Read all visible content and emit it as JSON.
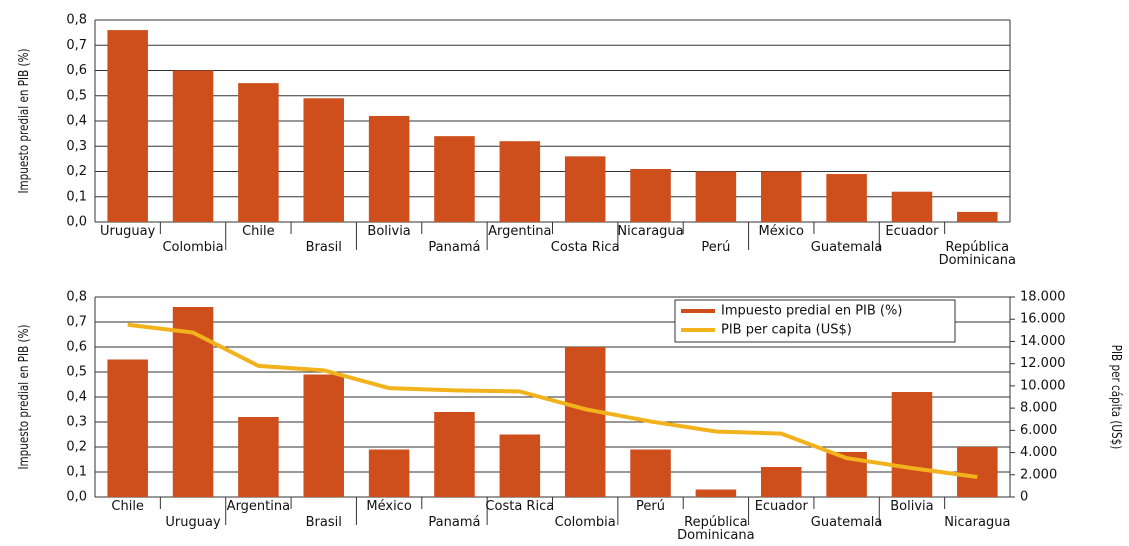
{
  "chart_data": [
    {
      "type": "bar",
      "y_label": "Impuesto predial en PIB (%)",
      "categories": [
        "Uruguay",
        "Colombia",
        "Chile",
        "Brasil",
        "Bolivia",
        "Panamá",
        "Argentina",
        "Costa Rica",
        "Nicaragua",
        "Perú",
        "México",
        "Guatemala",
        "Ecuador",
        "República Dominicana"
      ],
      "values": [
        0.76,
        0.6,
        0.55,
        0.49,
        0.42,
        0.34,
        0.32,
        0.26,
        0.21,
        0.2,
        0.2,
        0.19,
        0.12,
        0.04
      ],
      "color": "#cf4f1c",
      "ylim": [
        0,
        0.8
      ],
      "yticks": [
        {
          "value": 0,
          "label": "0,0"
        },
        {
          "value": 0.1,
          "label": "0,1"
        },
        {
          "value": 0.2,
          "label": "0,2"
        },
        {
          "value": 0.3,
          "label": "0,3"
        },
        {
          "value": 0.4,
          "label": "0,4"
        },
        {
          "value": 0.5,
          "label": "0,5"
        },
        {
          "value": 0.6,
          "label": "0,6"
        },
        {
          "value": 0.7,
          "label": "0,7"
        },
        {
          "value": 0.8,
          "label": "0,8"
        }
      ],
      "grid": true
    },
    {
      "type": "bar_line",
      "y_label": "Impuesto predial en PIB (%)",
      "y2_label": "PIB per cápita (US$)",
      "categories": [
        "Chile",
        "Uruguay",
        "Argentina",
        "Brasil",
        "México",
        "Panamá",
        "Costa Rica",
        "Colombia",
        "Perú",
        "República Dominicana",
        "Ecuador",
        "Guatemala",
        "Bolivia",
        "Nicaragua"
      ],
      "series": [
        {
          "name": "Impuesto predial en PIB (%)",
          "color": "#cf4f1c",
          "values": [
            0.55,
            0.76,
            0.32,
            0.49,
            0.19,
            0.34,
            0.25,
            0.6,
            0.19,
            0.03,
            0.12,
            0.18,
            0.42,
            0.2
          ]
        },
        {
          "name": "PIB per capita (US$)",
          "color": "#f2b21b",
          "axis": "y2",
          "values": [
            15500,
            14800,
            11800,
            11400,
            9800,
            9600,
            9500,
            7900,
            6800,
            5900,
            5700,
            3500,
            2600,
            1800
          ]
        }
      ],
      "ylim": [
        0,
        0.8
      ],
      "yticks": [
        {
          "value": 0,
          "label": "0,0"
        },
        {
          "value": 0.1,
          "label": "0,1"
        },
        {
          "value": 0.2,
          "label": "0,2"
        },
        {
          "value": 0.3,
          "label": "0,3"
        },
        {
          "value": 0.4,
          "label": "0,4"
        },
        {
          "value": 0.5,
          "label": "0,5"
        },
        {
          "value": 0.6,
          "label": "0,6"
        },
        {
          "value": 0.7,
          "label": "0,7"
        },
        {
          "value": 0.8,
          "label": "0,8"
        }
      ],
      "y2lim": [
        0,
        18000
      ],
      "y2ticks": [
        0,
        {
          "value": 2000,
          "label": "2.000"
        },
        {
          "value": 4000,
          "label": "4.000"
        },
        {
          "value": 6000,
          "label": "6.000"
        },
        {
          "value": 8000,
          "label": "8.000"
        },
        {
          "value": 10000,
          "label": "10.000"
        },
        {
          "value": 12000,
          "label": "12.000"
        },
        {
          "value": 14000,
          "label": "14.000"
        },
        {
          "value": 16000,
          "label": "16.000"
        },
        {
          "value": 18000,
          "label": "18.000"
        }
      ],
      "grid": true,
      "legend": "top-right"
    }
  ]
}
